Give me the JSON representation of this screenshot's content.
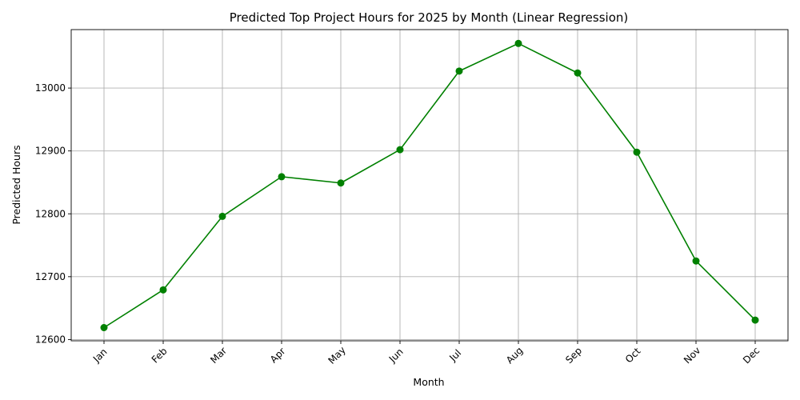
{
  "chart_data": {
    "type": "line",
    "title": "Predicted Top Project Hours for 2025 by Month (Linear Regression)",
    "xlabel": "Month",
    "ylabel": "Predicted Hours",
    "categories": [
      "Jan",
      "Feb",
      "Mar",
      "Apr",
      "May",
      "Jun",
      "Jul",
      "Aug",
      "Sep",
      "Oct",
      "Nov",
      "Dec"
    ],
    "series": [
      {
        "values": [
          12619,
          12679,
          12796,
          12859,
          12849,
          12902,
          13027,
          13071,
          13024,
          12898,
          12725,
          12631
        ],
        "color": "#008000",
        "marker": "circle"
      }
    ],
    "yticks": [
      12600,
      12700,
      12800,
      12900,
      13000
    ],
    "ylim": [
      12598,
      13093
    ],
    "grid": true,
    "x_tick_rotation": "45 degrees"
  }
}
